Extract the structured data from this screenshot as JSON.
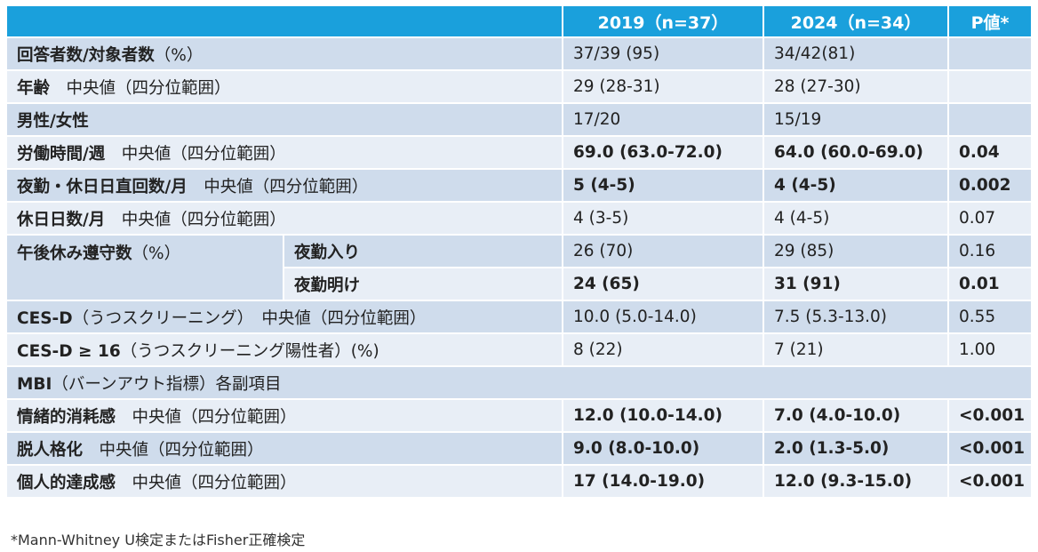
{
  "header": {
    "col_2019": "2019（n=37）",
    "col_2024": "2024（n=34）",
    "col_p": "P値*"
  },
  "rows": [
    {
      "label": "回答者数/対象者数",
      "sub": "（%）",
      "v2019": "37/39 (95)",
      "v2024": "34/42(81)",
      "p": ""
    },
    {
      "label": "年齢",
      "sub": "　中央値（四分位範囲）",
      "v2019": "29 (28-31)",
      "v2024": "28 (27-30)",
      "p": ""
    },
    {
      "label": "男性/女性",
      "sub": "",
      "v2019": "17/20",
      "v2024": "15/19",
      "p": ""
    },
    {
      "label": "労働時間/週",
      "sub": "　中央値（四分位範囲）",
      "v2019": "69.0 (63.0-72.0)",
      "v2024": "64.0 (60.0-69.0)",
      "p": "0.04"
    },
    {
      "label": "夜勤・休日日直回数/月",
      "sub": "　中央値（四分位範囲）",
      "v2019": "5 (4-5)",
      "v2024": "4 (4-5)",
      "p": "0.002"
    },
    {
      "label": "休日日数/月",
      "sub": "　中央値（四分位範囲）",
      "v2019": "4 (3-5)",
      "v2024": "4 (4-5)",
      "p": "0.07"
    },
    {
      "label": "午後休み遵守数",
      "sub": "（%）",
      "sub1": "夜勤入り",
      "sub2": "夜勤明け",
      "v2019_1": "26 (70)",
      "v2024_1": "29 (85)",
      "p_1": "0.16",
      "v2019_2": "24 (65)",
      "v2024_2": "31 (91)",
      "p_2": "0.01"
    },
    {
      "label": "CES-D",
      "sub": "（うつスクリーニング）　中央値（四分位範囲）",
      "v2019": "10.0 (5.0-14.0)",
      "v2024": "7.5 (5.3-13.0)",
      "p": "0.55"
    },
    {
      "label": "CES-D ≥ 16",
      "sub": "（うつスクリーニング陽性者）(%)",
      "v2019": "8 (22)",
      "v2024": "7 (21)",
      "p": "1.00"
    },
    {
      "label": "MBI",
      "sub": "（バーンアウト指標）各副項目"
    },
    {
      "label": "情緒的消耗感",
      "sub": "　中央値（四分位範囲）",
      "v2019": "12.0 (10.0-14.0)",
      "v2024": "7.0 (4.0-10.0)",
      "p": "<0.001"
    },
    {
      "label": "脱人格化",
      "sub": "　中央値（四分位範囲）",
      "v2019": "9.0 (8.0-10.0)",
      "v2024": "2.0 (1.3-5.0)",
      "p": "<0.001"
    },
    {
      "label": "個人的達成感",
      "sub": "　中央値（四分位範囲）",
      "v2019": "17 (14.0-19.0)",
      "v2024": "12.0 (9.3-15.0)",
      "p": "<0.001"
    }
  ],
  "footnote": "*Mann-Whitney U検定またはFisher正確検定",
  "colors": {
    "header_bg": "#1aa0dc",
    "row_odd": "#cfdcec",
    "row_even": "#e8eef6"
  }
}
